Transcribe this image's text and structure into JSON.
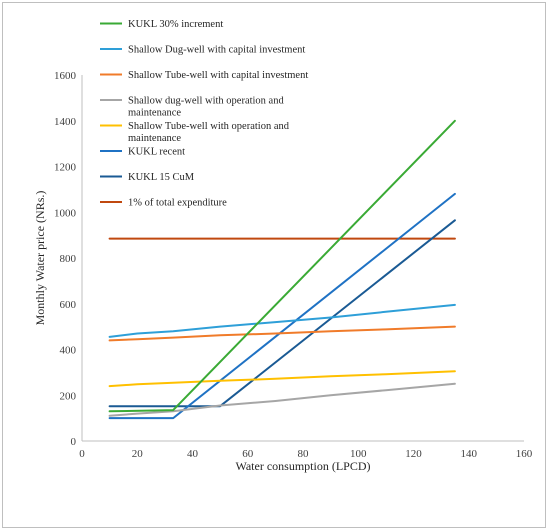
{
  "chart_data": {
    "type": "line",
    "title": "",
    "xlabel": "Water consumption (LPCD)",
    "ylabel": "Monthly Water price (NRs.)",
    "xlim": [
      0,
      160
    ],
    "ylim": [
      0,
      1600
    ],
    "x_ticks": [
      "0",
      "20",
      "40",
      "60",
      "80",
      "100",
      "120",
      "140",
      "160"
    ],
    "y_ticks": [
      "0",
      "200",
      "400",
      "600",
      "800",
      "1000",
      "1200",
      "1400",
      "1600"
    ],
    "grid": false,
    "legend_position": "top-left",
    "series": [
      {
        "name": "KUKL 30% increment",
        "color": "#3aaa35",
        "points": [
          [
            10,
            130
          ],
          [
            33,
            135
          ],
          [
            135,
            1400
          ]
        ]
      },
      {
        "name": "Shallow Dug-well with capital investment",
        "color": "#2e9fd8",
        "points": [
          [
            10,
            455
          ],
          [
            20,
            470
          ],
          [
            33,
            480
          ],
          [
            50,
            500
          ],
          [
            70,
            520
          ],
          [
            90,
            540
          ],
          [
            110,
            565
          ],
          [
            135,
            595
          ]
        ]
      },
      {
        "name": "Shallow Tube-well with capital investment",
        "color": "#f07b2a",
        "points": [
          [
            10,
            440
          ],
          [
            20,
            445
          ],
          [
            33,
            452
          ],
          [
            50,
            462
          ],
          [
            70,
            470
          ],
          [
            90,
            480
          ],
          [
            110,
            488
          ],
          [
            135,
            500
          ]
        ]
      },
      {
        "name": [
          "Shallow dug-well with operation and",
          "maintenance"
        ],
        "color": "#a6a6a6",
        "points": [
          [
            10,
            110
          ],
          [
            20,
            120
          ],
          [
            33,
            130
          ],
          [
            50,
            155
          ],
          [
            70,
            175
          ],
          [
            90,
            200
          ],
          [
            110,
            222
          ],
          [
            135,
            250
          ]
        ]
      },
      {
        "name": [
          "Shallow Tube-well with operation and",
          "maintenance"
        ],
        "color": "#ffc000",
        "points": [
          [
            10,
            240
          ],
          [
            20,
            248
          ],
          [
            33,
            255
          ],
          [
            50,
            263
          ],
          [
            70,
            272
          ],
          [
            90,
            283
          ],
          [
            110,
            292
          ],
          [
            135,
            305
          ]
        ]
      },
      {
        "name": "KUKL recent",
        "color": "#1f72c4",
        "points": [
          [
            10,
            100
          ],
          [
            33,
            100
          ],
          [
            135,
            1080
          ]
        ]
      },
      {
        "name": "KUKL 15 CuM",
        "color": "#1a5a94",
        "points": [
          [
            10,
            152
          ],
          [
            50,
            152
          ],
          [
            135,
            965
          ]
        ]
      },
      {
        "name": "1% of total expenditure",
        "color": "#c0480f",
        "points": [
          [
            10,
            885
          ],
          [
            135,
            885
          ]
        ]
      }
    ]
  }
}
